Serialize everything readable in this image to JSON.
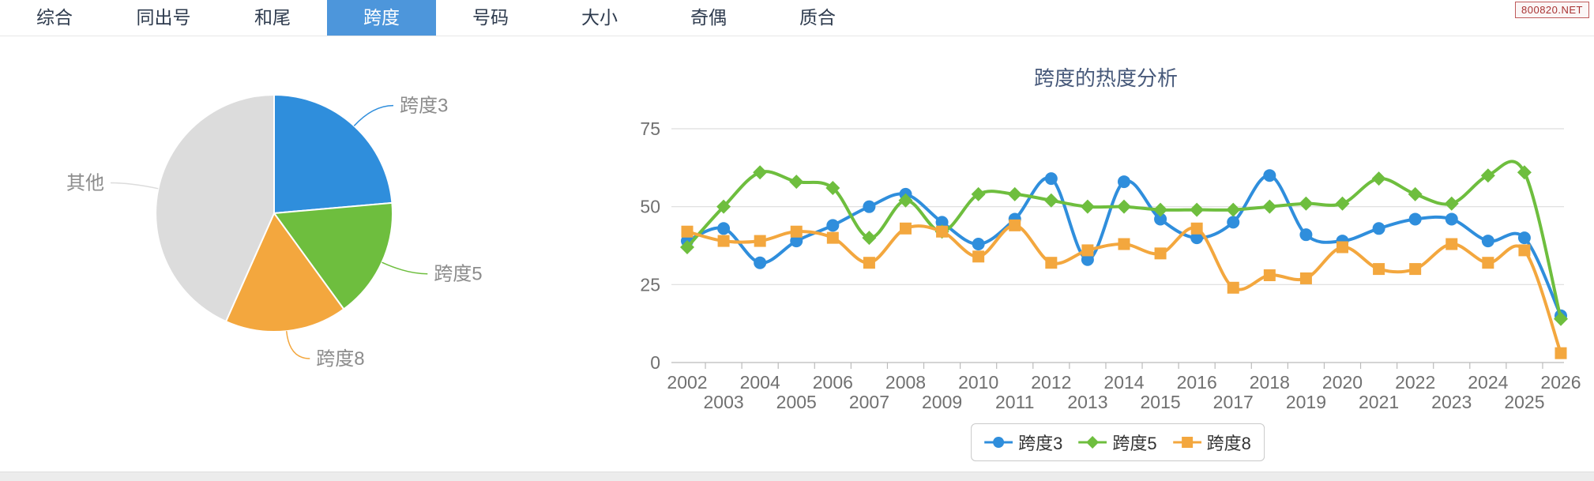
{
  "header": {
    "tabs": [
      {
        "label": "综合",
        "active": false
      },
      {
        "label": "同出号",
        "active": false
      },
      {
        "label": "和尾",
        "active": false
      },
      {
        "label": "跨度",
        "active": true
      },
      {
        "label": "号码",
        "active": false
      },
      {
        "label": "大小",
        "active": false
      },
      {
        "label": "奇偶",
        "active": false
      },
      {
        "label": "质合",
        "active": false
      }
    ],
    "badge": "800820.NET"
  },
  "colors": {
    "blue": "#2f8edc",
    "green": "#6ebe3e",
    "orange": "#f3a73e",
    "gray": "#dcdcdc",
    "tab_active_bg": "#4d96db",
    "title_text": "#47597a",
    "axis_label": "#707070",
    "pie_label": "#8c8c8c",
    "grid_line": "#dddddd",
    "axis_line": "#bbbbbb",
    "legend_text": "#333333"
  },
  "chart_data": [
    {
      "type": "pie",
      "name": "span-share-pie",
      "slices": [
        {
          "label": "跨度3",
          "color_key": "blue",
          "start_deg": 0,
          "end_deg": 85,
          "pct": 23.6
        },
        {
          "label": "跨度5",
          "color_key": "green",
          "start_deg": 85,
          "end_deg": 144,
          "pct": 16.4
        },
        {
          "label": "跨度8",
          "color_key": "orange",
          "start_deg": 144,
          "end_deg": 204,
          "pct": 16.7
        },
        {
          "label": "其他",
          "color_key": "gray",
          "start_deg": 204,
          "end_deg": 360,
          "pct": 43.3
        }
      ]
    },
    {
      "type": "line",
      "title": "跨度的热度分析",
      "x": [
        2002,
        2003,
        2004,
        2005,
        2006,
        2007,
        2008,
        2009,
        2010,
        2011,
        2012,
        2013,
        2014,
        2015,
        2016,
        2017,
        2018,
        2019,
        2020,
        2021,
        2022,
        2023,
        2024,
        2025,
        2026
      ],
      "ylim": [
        0,
        75
      ],
      "yticks": [
        0,
        25,
        50,
        75
      ],
      "grid": true,
      "legend_position": "bottom",
      "series": [
        {
          "name": "跨度3",
          "marker": "circle",
          "color_key": "blue",
          "values": [
            39,
            43,
            32,
            39,
            44,
            50,
            54,
            45,
            38,
            46,
            59,
            33,
            58,
            46,
            40,
            45,
            60,
            41,
            39,
            43,
            46,
            46,
            39,
            40,
            15
          ]
        },
        {
          "name": "跨度5",
          "marker": "diamond",
          "color_key": "green",
          "values": [
            37,
            50,
            61,
            58,
            56,
            40,
            52,
            42,
            54,
            54,
            52,
            50,
            50,
            49,
            49,
            49,
            50,
            51,
            51,
            59,
            54,
            51,
            60,
            61,
            14
          ]
        },
        {
          "name": "跨度8",
          "marker": "square",
          "color_key": "orange",
          "values": [
            42,
            39,
            39,
            42,
            40,
            32,
            43,
            42,
            34,
            44,
            32,
            36,
            38,
            35,
            43,
            24,
            28,
            27,
            37,
            30,
            30,
            38,
            32,
            36,
            3
          ]
        }
      ]
    }
  ]
}
